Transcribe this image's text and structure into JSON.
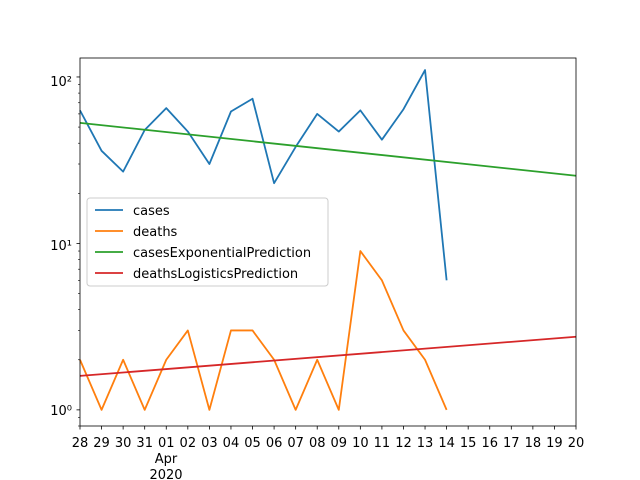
{
  "chart_data": {
    "type": "line",
    "yscale": "log",
    "ylim": [
      0.8,
      130
    ],
    "xlim": [
      "2020-03-28",
      "2020-04-20"
    ],
    "x_tick_labels": [
      "28",
      "29",
      "30",
      "31",
      "01",
      "02",
      "03",
      "04",
      "05",
      "06",
      "07",
      "08",
      "09",
      "10",
      "11",
      "12",
      "13",
      "14",
      "15",
      "16",
      "17",
      "18",
      "19",
      "20"
    ],
    "x_secondary_labels": [
      "Apr",
      "2020"
    ],
    "y_tick_labels": [
      "10⁰",
      "10¹",
      "10²"
    ],
    "grid": false,
    "legend_position": "center-left",
    "series": [
      {
        "name": "cases",
        "color": "#1f77b4",
        "x": [
          "2020-03-28",
          "2020-03-29",
          "2020-03-30",
          "2020-03-31",
          "2020-04-01",
          "2020-04-02",
          "2020-04-03",
          "2020-04-04",
          "2020-04-05",
          "2020-04-06",
          "2020-04-07",
          "2020-04-08",
          "2020-04-09",
          "2020-04-10",
          "2020-04-11",
          "2020-04-12",
          "2020-04-13",
          "2020-04-14"
        ],
        "values": [
          63,
          36,
          27,
          48,
          65,
          47,
          30,
          62,
          74,
          23,
          38,
          60,
          47,
          63,
          42,
          64,
          110,
          6
        ]
      },
      {
        "name": "deaths",
        "color": "#ff7f0e",
        "x": [
          "2020-03-28",
          "2020-03-29",
          "2020-03-30",
          "2020-03-31",
          "2020-04-01",
          "2020-04-02",
          "2020-04-03",
          "2020-04-04",
          "2020-04-05",
          "2020-04-06",
          "2020-04-07",
          "2020-04-08",
          "2020-04-09",
          "2020-04-10",
          "2020-04-11",
          "2020-04-12",
          "2020-04-13",
          "2020-04-14"
        ],
        "values": [
          2,
          1,
          2,
          1,
          2,
          3,
          1,
          3,
          3,
          2,
          1,
          2,
          1,
          9,
          6,
          3,
          2,
          1
        ]
      },
      {
        "name": "casesExponentialPrediction",
        "color": "#2ca02c",
        "x": [
          "2020-03-28",
          "2020-04-20"
        ],
        "values": [
          53,
          25.5
        ]
      },
      {
        "name": "deathsLogisticsPrediction",
        "color": "#d62728",
        "x": [
          "2020-03-28",
          "2020-04-20"
        ],
        "values": [
          1.6,
          2.75
        ]
      }
    ]
  }
}
